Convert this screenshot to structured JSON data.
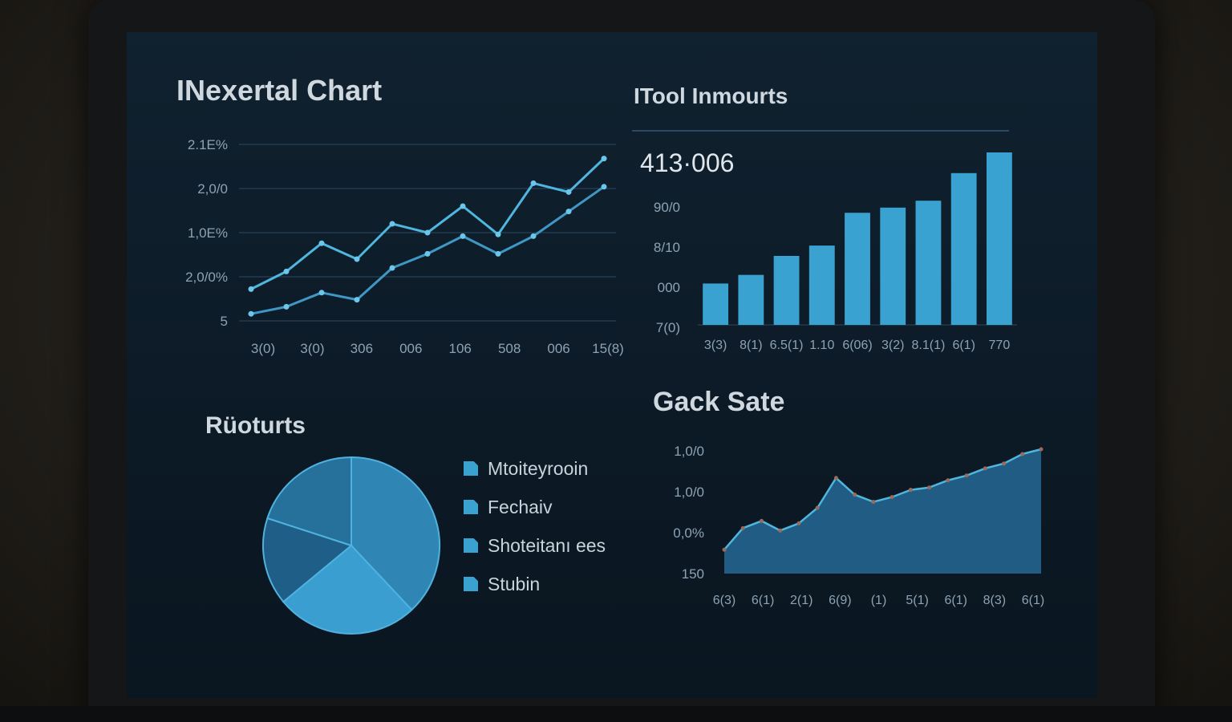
{
  "panels": {
    "line_title": "INexertal Chart",
    "bar_title": "ITool Inmourts",
    "bar_kpi": "413·006",
    "pie_title": "Rüoturts",
    "area_title": "Gack Sate"
  },
  "colors": {
    "accent": "#3aa2d0",
    "line": "#4fb6de",
    "grid": "#2a4a63",
    "text": "#8da3b3"
  },
  "chart_data": [
    {
      "type": "line",
      "title": "INexertal Chart",
      "y_tick_labels": [
        "2.1E%",
        "2,0/0",
        "1,0E%",
        "2,0/0%",
        "5"
      ],
      "x_tick_labels": [
        "3(0)",
        "3(0)",
        "306",
        "006",
        "106",
        "508",
        "006",
        "15(8)"
      ],
      "ylim": [
        0,
        100
      ],
      "series": [
        {
          "values": [
            18,
            28,
            44,
            35,
            55,
            50,
            65,
            49,
            78,
            73,
            92
          ]
        },
        {
          "values": [
            4,
            8,
            16,
            12,
            30,
            38,
            48,
            38,
            48,
            62,
            76
          ]
        }
      ]
    },
    {
      "type": "bar",
      "title": "ITool Inmourts",
      "kpi": "413·006",
      "y_tick_labels": [
        "90/0",
        "8/10",
        "000",
        "7(0)"
      ],
      "categories": [
        "3(3)",
        "8(1)",
        "6.5(1)",
        "1.10",
        "6(06)",
        "3(2)",
        "8.1(1)",
        "6(1)",
        "770"
      ],
      "values": [
        24,
        29,
        40,
        46,
        65,
        68,
        72,
        88,
        100
      ],
      "ylim": [
        0,
        100
      ]
    },
    {
      "type": "pie",
      "title": "Rüoturts",
      "labels": [
        "Mtoiteyrooin",
        "Fechaiv",
        "Shoteitanı ees",
        "Stubin"
      ],
      "values": [
        38,
        26,
        16,
        20
      ]
    },
    {
      "type": "area",
      "title": "Gack Sate",
      "y_tick_labels": [
        "1,0/0",
        "1,0/0",
        "0,0%",
        "150"
      ],
      "x_tick_labels": [
        "6(3)",
        "6(1)",
        "2(1)",
        "6(9)",
        "(1)",
        "5(1)",
        "6(1)",
        "8(3)",
        "6(1)"
      ],
      "ylim": [
        0,
        100
      ],
      "values": [
        20,
        38,
        44,
        36,
        42,
        55,
        80,
        66,
        60,
        64,
        70,
        72,
        78,
        82,
        88,
        92,
        100,
        104
      ]
    }
  ]
}
